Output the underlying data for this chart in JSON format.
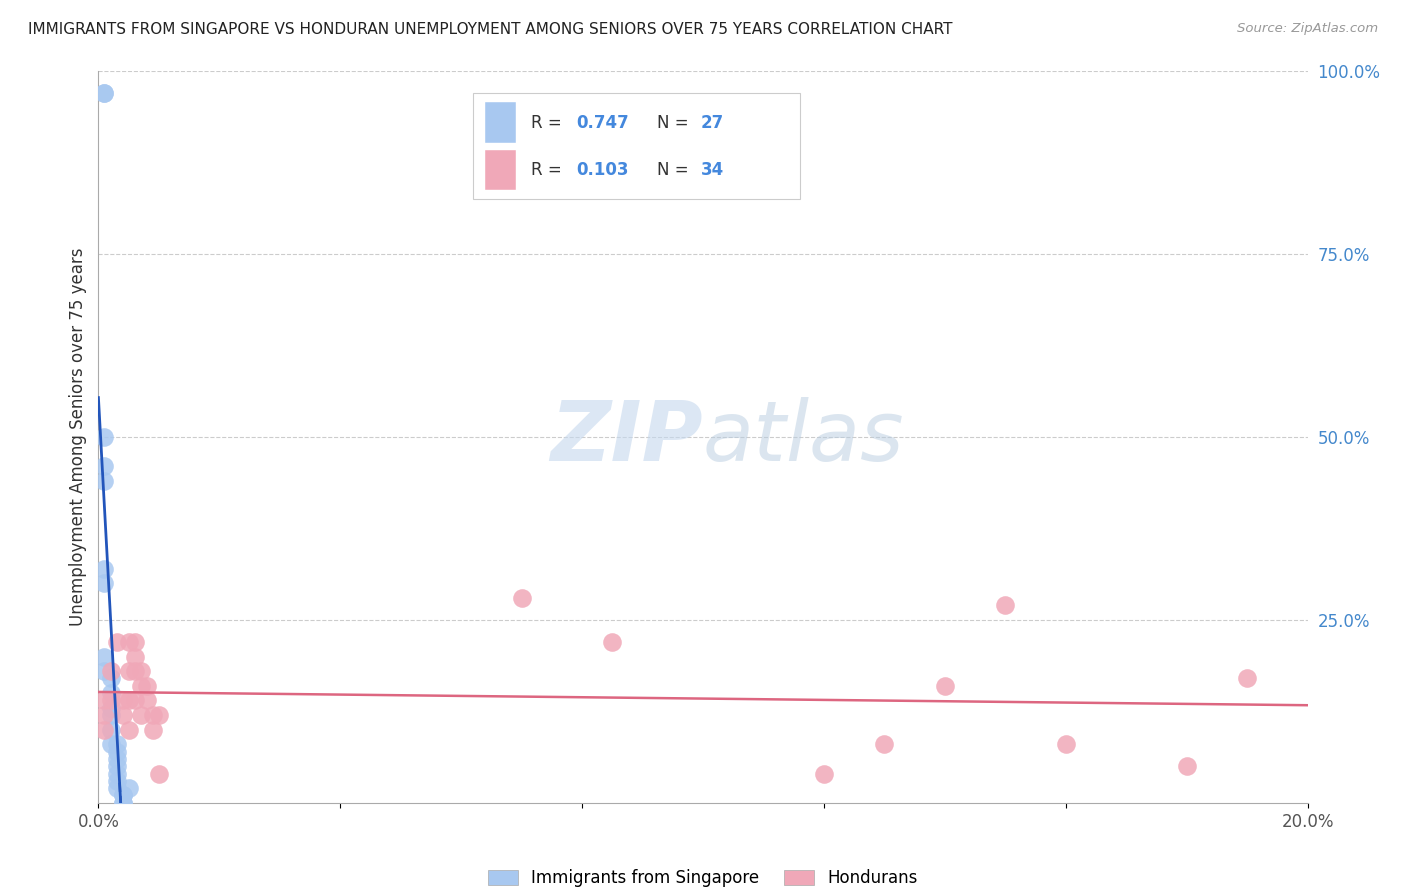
{
  "title": "IMMIGRANTS FROM SINGAPORE VS HONDURAN UNEMPLOYMENT AMONG SENIORS OVER 75 YEARS CORRELATION CHART",
  "source": "Source: ZipAtlas.com",
  "ylabel": "Unemployment Among Seniors over 75 years",
  "xlim": [
    0,
    0.2
  ],
  "ylim": [
    0,
    1.0
  ],
  "x_ticks": [
    0.0,
    0.04,
    0.08,
    0.12,
    0.16,
    0.2
  ],
  "x_tick_labels": [
    "0.0%",
    "",
    "",
    "",
    "",
    "20.0%"
  ],
  "y_ticks_right": [
    0.0,
    0.25,
    0.5,
    0.75,
    1.0
  ],
  "y_tick_labels_right": [
    "",
    "25.0%",
    "50.0%",
    "75.0%",
    "100.0%"
  ],
  "singapore_R": 0.747,
  "singapore_N": 27,
  "honduran_R": 0.103,
  "honduran_N": 34,
  "singapore_color": "#a8c8f0",
  "honduran_color": "#f0a8b8",
  "line_singapore_color": "#2255bb",
  "line_honduran_color": "#dd6680",
  "watermark": "ZIPatlas",
  "singapore_x": [
    0.001,
    0.001,
    0.001,
    0.001,
    0.001,
    0.001,
    0.001,
    0.001,
    0.001,
    0.002,
    0.002,
    0.002,
    0.002,
    0.002,
    0.002,
    0.003,
    0.003,
    0.003,
    0.003,
    0.003,
    0.003,
    0.003,
    0.004,
    0.004,
    0.004,
    0.004,
    0.005
  ],
  "singapore_y": [
    0.97,
    0.97,
    0.5,
    0.46,
    0.44,
    0.32,
    0.3,
    0.2,
    0.18,
    0.17,
    0.15,
    0.13,
    0.12,
    0.1,
    0.08,
    0.08,
    0.07,
    0.06,
    0.05,
    0.04,
    0.03,
    0.02,
    0.01,
    0.01,
    0.0,
    0.0,
    0.02
  ],
  "honduran_x": [
    0.001,
    0.001,
    0.001,
    0.002,
    0.002,
    0.003,
    0.004,
    0.004,
    0.005,
    0.005,
    0.005,
    0.005,
    0.006,
    0.006,
    0.006,
    0.006,
    0.007,
    0.007,
    0.007,
    0.008,
    0.008,
    0.009,
    0.009,
    0.01,
    0.01,
    0.07,
    0.085,
    0.12,
    0.13,
    0.14,
    0.15,
    0.16,
    0.18,
    0.19
  ],
  "honduran_y": [
    0.14,
    0.12,
    0.1,
    0.18,
    0.14,
    0.22,
    0.14,
    0.12,
    0.1,
    0.22,
    0.18,
    0.14,
    0.22,
    0.2,
    0.18,
    0.14,
    0.18,
    0.16,
    0.12,
    0.16,
    0.14,
    0.12,
    0.1,
    0.12,
    0.04,
    0.28,
    0.22,
    0.04,
    0.08,
    0.16,
    0.27,
    0.08,
    0.05,
    0.17
  ]
}
